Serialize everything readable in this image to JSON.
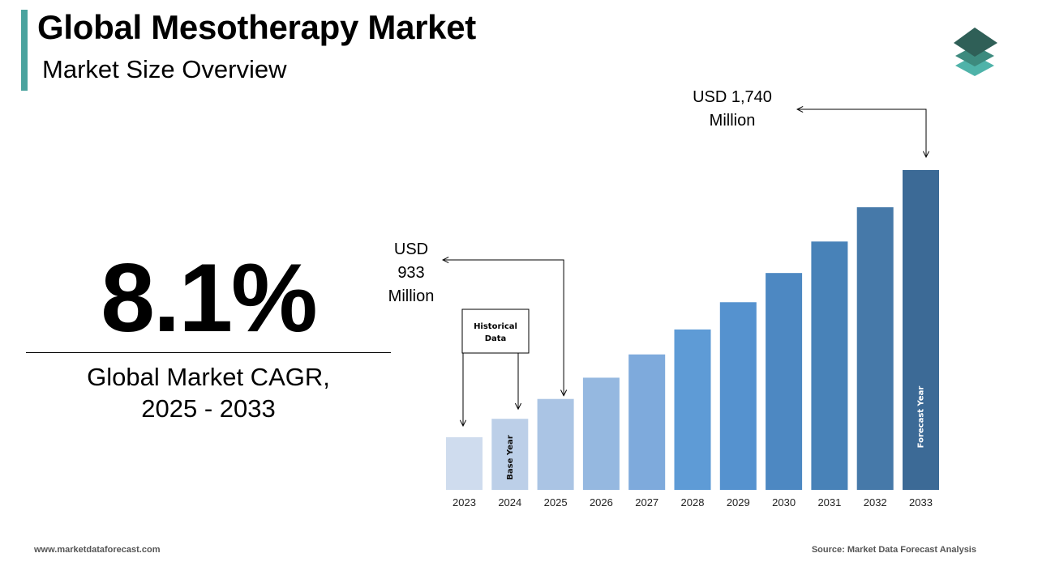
{
  "header": {
    "title": "Global Mesotherapy Market",
    "subtitle": "Market Size Overview"
  },
  "logo_icon": "layered-stack-icon",
  "kpi": {
    "value": "8.1%",
    "label_line1": "Global Market CAGR,",
    "label_line2": "2025 - 2033"
  },
  "colors": {
    "accent": "#4aa39e",
    "bars": [
      "#cfdcee",
      "#bccfe8",
      "#aac4e4",
      "#95b8e0",
      "#7eaadc",
      "#5e9bd6",
      "#5592cf",
      "#4d88c2",
      "#4882b8",
      "#4679a9",
      "#3c6a96"
    ]
  },
  "chart_data": {
    "type": "bar",
    "categories": [
      "2023",
      "2024",
      "2025",
      "2026",
      "2027",
      "2028",
      "2029",
      "2030",
      "2031",
      "2032",
      "2033"
    ],
    "values": [
      798,
      863,
      933,
      1008,
      1090,
      1178,
      1274,
      1377,
      1488,
      1609,
      1740
    ],
    "annotations": {
      "value_2025": [
        "USD",
        "933",
        "Million"
      ],
      "value_2033": [
        "USD 1,740",
        "Million"
      ],
      "historical_box": [
        "Historical",
        "Data"
      ],
      "base_year": "Base Year",
      "forecast_year": "Forecast Year"
    }
  },
  "footer": {
    "website": "www.marketdataforecast.com",
    "source": "Source: Market Data Forecast Analysis"
  }
}
